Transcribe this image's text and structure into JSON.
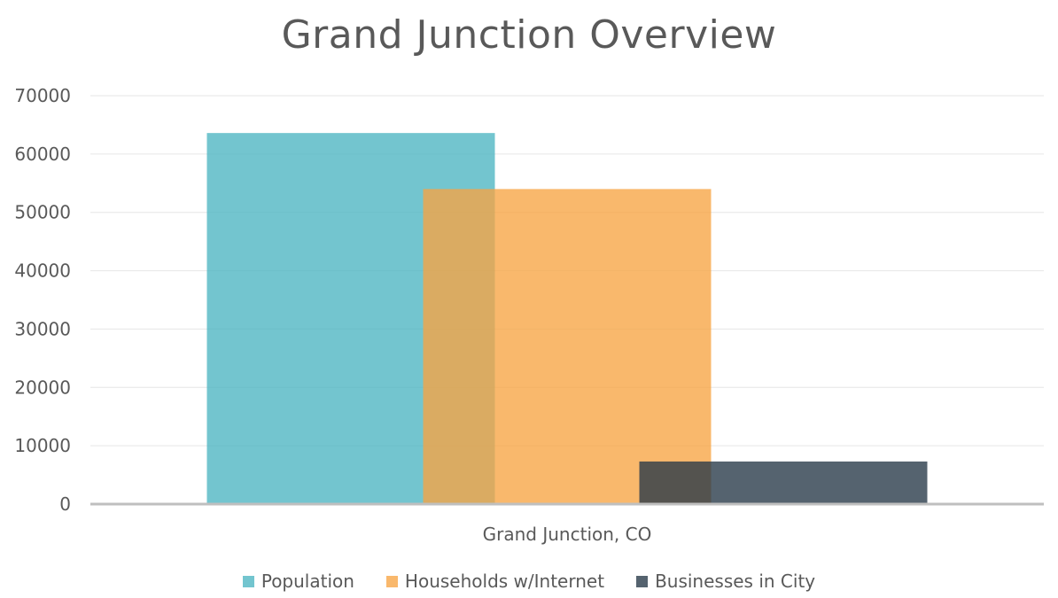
{
  "chart_data": {
    "type": "bar",
    "title": "Grand Junction Overview",
    "categories": [
      "Grand Junction, CO"
    ],
    "series": [
      {
        "name": "Population",
        "values": [
          63600
        ],
        "color": "#4BB5C1"
      },
      {
        "name": "Households w/Internet",
        "values": [
          54000
        ],
        "color": "#F7A442"
      },
      {
        "name": "Businesses in City",
        "values": [
          7300
        ],
        "color": "#253746"
      }
    ],
    "ylim": [
      0,
      70000
    ],
    "yticks": [
      0,
      10000,
      20000,
      30000,
      40000,
      50000,
      60000,
      70000
    ],
    "xlabel": "",
    "ylabel": "",
    "grid": true,
    "legend_position": "bottom",
    "bar_opacity": 0.78,
    "colors": {
      "grid": "#e6e6e6",
      "axis": "#bfbfbf",
      "text": "#595959"
    }
  }
}
